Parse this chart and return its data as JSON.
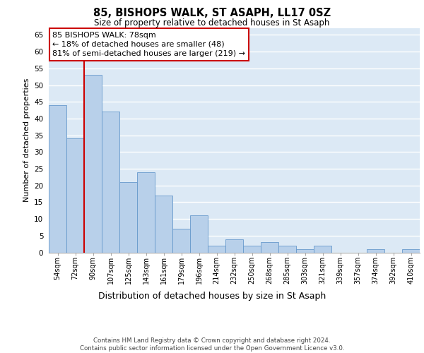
{
  "title1": "85, BISHOPS WALK, ST ASAPH, LL17 0SZ",
  "title2": "Size of property relative to detached houses in St Asaph",
  "xlabel": "Distribution of detached houses by size in St Asaph",
  "ylabel": "Number of detached properties",
  "categories": [
    "54sqm",
    "72sqm",
    "90sqm",
    "107sqm",
    "125sqm",
    "143sqm",
    "161sqm",
    "179sqm",
    "196sqm",
    "214sqm",
    "232sqm",
    "250sqm",
    "268sqm",
    "285sqm",
    "303sqm",
    "321sqm",
    "339sqm",
    "357sqm",
    "374sqm",
    "392sqm",
    "410sqm"
  ],
  "values": [
    44,
    34,
    53,
    42,
    21,
    24,
    17,
    7,
    11,
    2,
    4,
    2,
    3,
    2,
    1,
    2,
    0,
    0,
    1,
    0,
    1
  ],
  "bar_color": "#b8d0ea",
  "bar_edge_color": "#6699cc",
  "background_color": "#dce9f5",
  "grid_color": "#ffffff",
  "vline_color": "#cc0000",
  "annotation_text": "85 BISHOPS WALK: 78sqm\n← 18% of detached houses are smaller (48)\n81% of semi-detached houses are larger (219) →",
  "ann_box_fc": "#ffffff",
  "ann_box_ec": "#cc0000",
  "footer_text": "Contains HM Land Registry data © Crown copyright and database right 2024.\nContains public sector information licensed under the Open Government Licence v3.0.",
  "ylim_max": 67,
  "yticks": [
    0,
    5,
    10,
    15,
    20,
    25,
    30,
    35,
    40,
    45,
    50,
    55,
    60,
    65
  ],
  "vline_bin_idx": 1,
  "title1_fontsize": 10.5,
  "title2_fontsize": 8.5,
  "ann_fontsize": 8,
  "ylabel_fontsize": 8,
  "xlabel_fontsize": 9,
  "xtick_fontsize": 7,
  "ytick_fontsize": 7.5,
  "footer_fontsize": 6.2
}
